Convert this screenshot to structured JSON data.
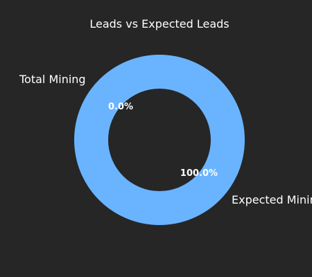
{
  "chart_data": {
    "type": "pie",
    "title": "Leads vs Expected Leads",
    "categories": [
      "Total Mining",
      "Expected Mining"
    ],
    "values": [
      0,
      1
    ],
    "percent_labels": [
      "0.0%",
      "100.0%"
    ],
    "colors": [
      "#6ab4ff",
      "#6ab4ff"
    ],
    "donut": true,
    "legend": "none"
  },
  "colors": {
    "background": "#262626",
    "text": "#ffffff",
    "slice": "#6ab4ff"
  }
}
